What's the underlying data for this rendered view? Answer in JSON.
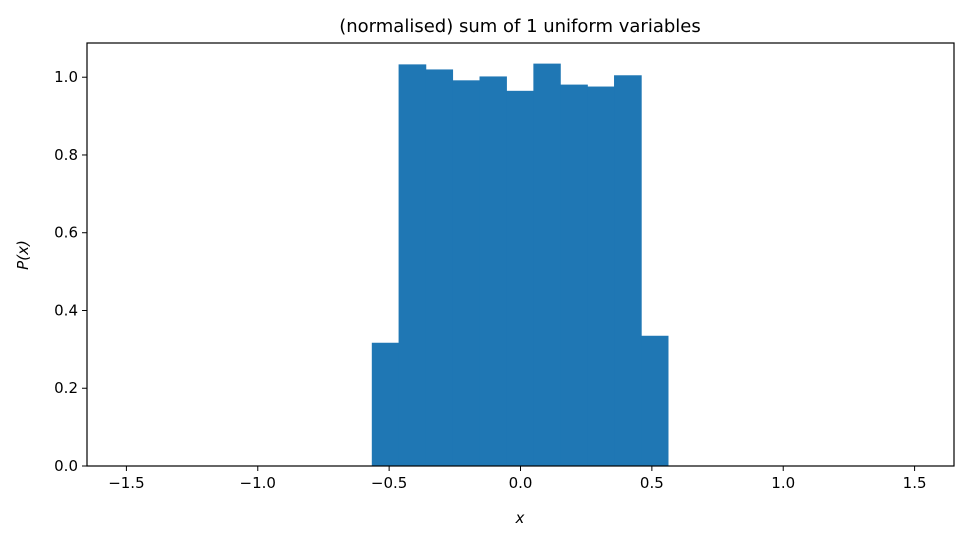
{
  "chart_data": {
    "type": "bar",
    "title": "(normalised) sum of 1 uniform variables",
    "xlabel": "x",
    "ylabel": "P(x)",
    "xlim": [
      -1.65,
      1.65
    ],
    "ylim": [
      0,
      1.088
    ],
    "xticks": [
      -1.5,
      -1.0,
      -0.5,
      0.0,
      0.5,
      1.0,
      1.5
    ],
    "xtick_labels": [
      "−1.5",
      "−1.0",
      "−0.5",
      "0.0",
      "0.5",
      "1.0",
      "1.5"
    ],
    "yticks": [
      0.0,
      0.2,
      0.4,
      0.6,
      0.8,
      1.0
    ],
    "ytick_labels": [
      "0.0",
      "0.2",
      "0.4",
      "0.6",
      "0.8",
      "1.0"
    ],
    "grid": false,
    "bar_color": "#1f77b4",
    "bins": [
      {
        "x0": -0.566,
        "x1": -0.464,
        "value": 0.317
      },
      {
        "x0": -0.464,
        "x1": -0.361,
        "value": 1.033
      },
      {
        "x0": -0.361,
        "x1": -0.259,
        "value": 1.02
      },
      {
        "x0": -0.259,
        "x1": -0.156,
        "value": 0.992
      },
      {
        "x0": -0.156,
        "x1": -0.054,
        "value": 1.002
      },
      {
        "x0": -0.054,
        "x1": 0.049,
        "value": 0.965
      },
      {
        "x0": 0.049,
        "x1": 0.151,
        "value": 1.035
      },
      {
        "x0": 0.151,
        "x1": 0.254,
        "value": 0.981
      },
      {
        "x0": 0.254,
        "x1": 0.356,
        "value": 0.976
      },
      {
        "x0": 0.356,
        "x1": 0.459,
        "value": 1.005
      },
      {
        "x0": 0.459,
        "x1": 0.561,
        "value": 0.335
      }
    ]
  }
}
